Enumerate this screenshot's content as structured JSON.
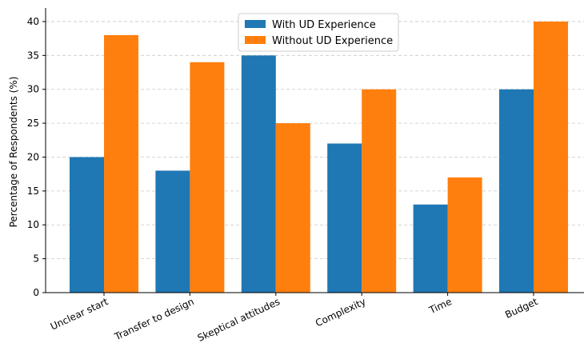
{
  "chart_data": {
    "type": "bar",
    "categories": [
      "Unclear start",
      "Transfer to design",
      "Skeptical attitudes",
      "Complexity",
      "Time",
      "Budget"
    ],
    "series": [
      {
        "name": "With UD Experience",
        "values": [
          20,
          18,
          35,
          22,
          13,
          30
        ],
        "color": "#1f77b4"
      },
      {
        "name": "Without UD Experience",
        "values": [
          38,
          34,
          25,
          30,
          17,
          40
        ],
        "color": "#ff7f0e"
      }
    ],
    "xlabel": "",
    "ylabel": "Percentage of Respondents (%)",
    "ylim": [
      0,
      42
    ],
    "yticks": [
      0,
      5,
      10,
      15,
      20,
      25,
      30,
      35,
      40
    ],
    "grid": "horizontal dashed",
    "legend_position": "top-center"
  }
}
